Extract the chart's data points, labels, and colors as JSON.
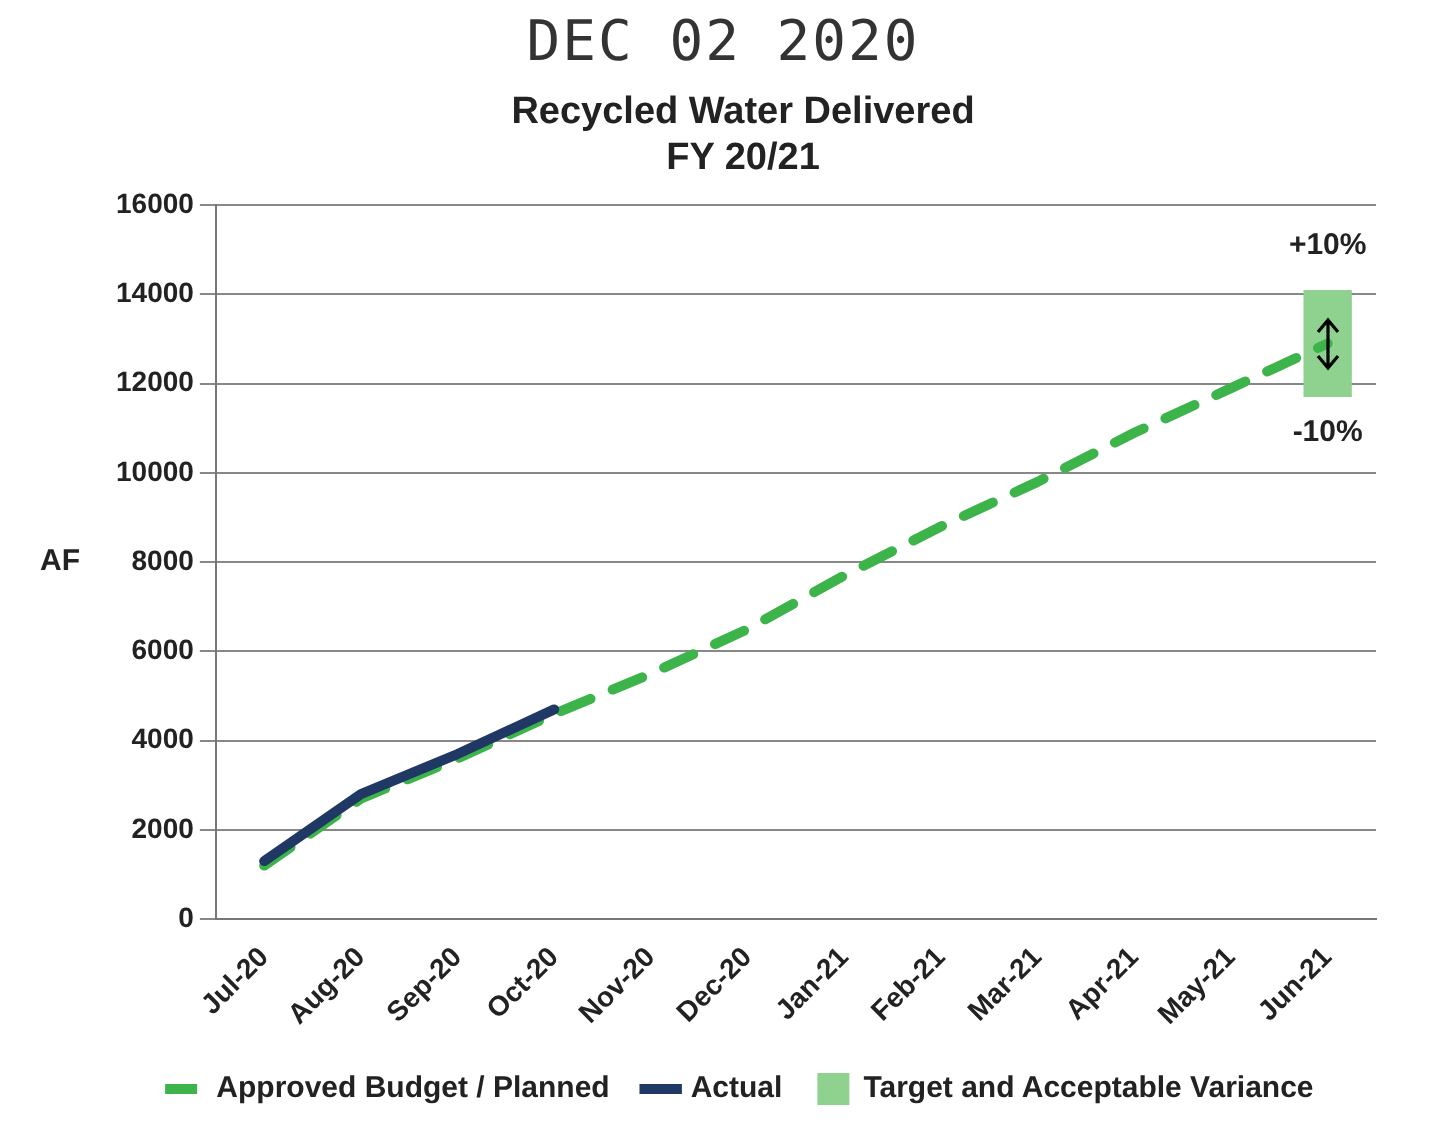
{
  "chart_data": {
    "type": "line",
    "title": [
      "Recycled Water Delivered",
      "FY 20/21"
    ],
    "ylabel": "AF",
    "categories": [
      "Jul-20",
      "Aug-20",
      "Sep-20",
      "Oct-20",
      "Nov-20",
      "Dec-20",
      "Jan-21",
      "Feb-21",
      "Mar-21",
      "Apr-21",
      "May-21",
      "Jun-21"
    ],
    "series": [
      {
        "name": "Approved Budget / Planned",
        "line_style": "dashed",
        "color": "#3cb44a",
        "values": [
          1200,
          2700,
          3600,
          4600,
          5500,
          6500,
          7700,
          8800,
          9800,
          10900,
          11900,
          12900
        ]
      },
      {
        "name": "Actual",
        "line_style": "solid",
        "color": "#1f3864",
        "values": [
          1300,
          2800,
          3700,
          4700,
          null,
          null,
          null,
          null,
          null,
          null,
          null,
          null
        ]
      },
      {
        "name": "Target and Acceptable Variance",
        "type": "bar",
        "color": "#8fd18f",
        "base": [
          null,
          null,
          null,
          null,
          null,
          null,
          null,
          null,
          null,
          null,
          null,
          11700
        ],
        "values": [
          null,
          null,
          null,
          null,
          null,
          null,
          null,
          null,
          null,
          null,
          null,
          2400
        ]
      }
    ],
    "ylim": [
      0,
      16000
    ],
    "yticks": [
      0,
      2000,
      4000,
      6000,
      8000,
      10000,
      12000,
      14000,
      16000
    ],
    "grid": "y",
    "legend": "bottom",
    "marker": "none",
    "annotations": [
      "DEC 02 2020",
      {
        "text": "+10%",
        "x": "Jun-21",
        "y": 14100
      },
      {
        "text": "-10%",
        "x": "Jun-21",
        "y": 11700
      }
    ]
  }
}
